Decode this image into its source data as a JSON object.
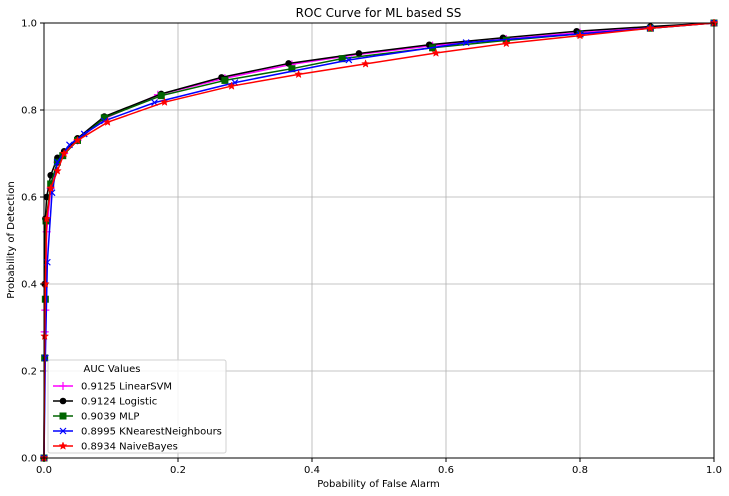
{
  "chart_data": {
    "type": "line",
    "title": "ROC Curve for ML based SS",
    "xlabel": "Pobability of False Alarm",
    "ylabel": "Probability of Detection",
    "xlim": [
      0,
      1
    ],
    "ylim": [
      0,
      1
    ],
    "xticks": [
      "0.0",
      "0.2",
      "0.4",
      "0.6",
      "0.8",
      "1.0"
    ],
    "yticks": [
      "0.0",
      "0.2",
      "0.4",
      "0.6",
      "0.8",
      "1.0"
    ],
    "grid": true,
    "legend": {
      "title": "AUC Values",
      "placement": "lower-left"
    },
    "series": [
      {
        "name": "0.9125 LinearSVM",
        "color": "#ff00ff",
        "marker": "plus",
        "x": [
          0,
          0.001,
          0.002,
          0.004,
          0.01,
          0.02,
          0.03,
          0.05,
          0.09,
          0.17,
          0.27,
          0.37,
          0.47,
          0.58,
          0.69,
          0.8,
          0.905,
          1.0
        ],
        "y": [
          0,
          0.29,
          0.34,
          0.52,
          0.62,
          0.68,
          0.7,
          0.73,
          0.78,
          0.835,
          0.873,
          0.905,
          0.928,
          0.948,
          0.963,
          0.978,
          0.99,
          1.0
        ]
      },
      {
        "name": "0.9124 Logistic",
        "color": "#000000",
        "marker": "circle",
        "x": [
          0,
          0.001,
          0.002,
          0.004,
          0.01,
          0.02,
          0.03,
          0.05,
          0.09,
          0.175,
          0.265,
          0.365,
          0.47,
          0.575,
          0.685,
          0.795,
          0.905,
          1.0
        ],
        "y": [
          0,
          0.4,
          0.55,
          0.6,
          0.65,
          0.69,
          0.705,
          0.735,
          0.785,
          0.837,
          0.875,
          0.907,
          0.93,
          0.95,
          0.966,
          0.981,
          0.992,
          1.0
        ]
      },
      {
        "name": "0.9039 MLP",
        "color": "#006400",
        "marker": "square",
        "x": [
          0,
          0.001,
          0.002,
          0.003,
          0.01,
          0.02,
          0.028,
          0.05,
          0.09,
          0.175,
          0.27,
          0.37,
          0.445,
          0.58,
          0.69,
          0.8,
          0.905,
          1.0
        ],
        "y": [
          0,
          0.23,
          0.365,
          0.545,
          0.63,
          0.68,
          0.695,
          0.73,
          0.782,
          0.833,
          0.868,
          0.895,
          0.918,
          0.943,
          0.96,
          0.975,
          0.988,
          1.0
        ]
      },
      {
        "name": "0.8995 KNearestNeighbours",
        "color": "#0000ff",
        "marker": "x",
        "x": [
          0,
          0.002,
          0.005,
          0.012,
          0.02,
          0.038,
          0.06,
          0.09,
          0.165,
          0.285,
          0.455,
          0.63,
          0.8,
          0.905,
          1.0
        ],
        "y": [
          0,
          0.23,
          0.45,
          0.61,
          0.68,
          0.72,
          0.745,
          0.775,
          0.817,
          0.863,
          0.915,
          0.955,
          0.975,
          0.988,
          1.0
        ]
      },
      {
        "name": "0.8934 NaiveBayes",
        "color": "#ff0000",
        "marker": "star",
        "x": [
          0,
          0.001,
          0.002,
          0.004,
          0.01,
          0.02,
          0.03,
          0.05,
          0.095,
          0.18,
          0.28,
          0.38,
          0.48,
          0.585,
          0.69,
          0.8,
          0.905,
          1.0
        ],
        "y": [
          0,
          0.28,
          0.4,
          0.55,
          0.62,
          0.66,
          0.7,
          0.73,
          0.772,
          0.818,
          0.855,
          0.882,
          0.906,
          0.931,
          0.953,
          0.971,
          0.988,
          1.0
        ]
      }
    ]
  }
}
